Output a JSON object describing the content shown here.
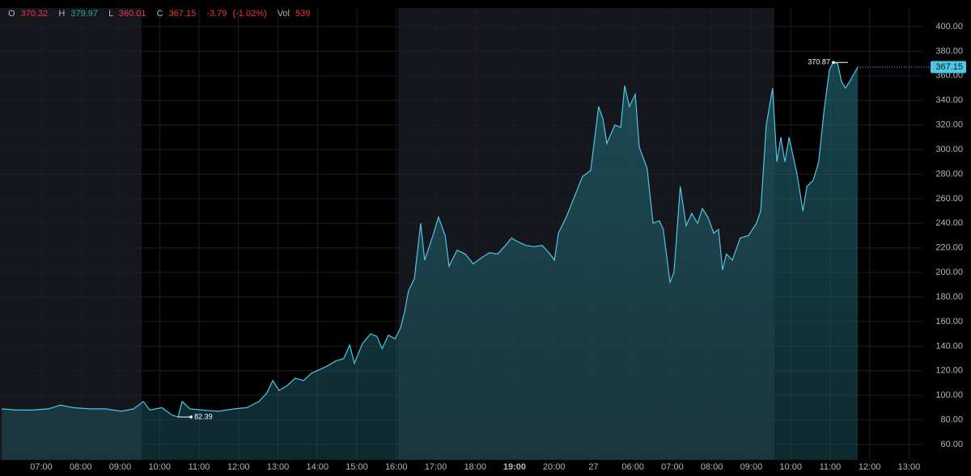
{
  "chart_data": {
    "type": "area",
    "header": {
      "open_label": "O",
      "open": 370.32,
      "high_label": "H",
      "high": 379.97,
      "low_label": "L",
      "low": 360.01,
      "close_label": "C",
      "close": 367.15,
      "change": -3.79,
      "change_pct": {
        "value": -1.02,
        "label": "(-1.02%)"
      },
      "vol_label": "Vol",
      "vol": 539
    },
    "color": "#4fc6e6",
    "x": [
      0.0,
      0.36,
      0.77,
      1.18,
      1.49,
      1.8,
      2.21,
      2.62,
      3.03,
      3.34,
      3.59,
      3.75,
      4.06,
      4.31,
      4.47,
      4.57,
      4.77,
      5.08,
      5.49,
      5.9,
      6.21,
      6.52,
      6.72,
      6.87,
      7.03,
      7.24,
      7.44,
      7.65,
      7.85,
      8.06,
      8.26,
      8.47,
      8.67,
      8.82,
      8.94,
      9.14,
      9.35,
      9.51,
      9.64,
      9.8,
      9.97,
      10.11,
      10.21,
      10.31,
      10.46,
      10.62,
      10.72,
      10.93,
      11.07,
      11.24,
      11.34,
      11.54,
      11.75,
      11.95,
      12.16,
      12.36,
      12.57,
      12.77,
      12.92,
      13.08,
      13.29,
      13.49,
      13.7,
      13.9,
      14.01,
      14.11,
      14.31,
      14.52,
      14.72,
      14.93,
      15.13,
      15.24,
      15.34,
      15.54,
      15.69,
      15.79,
      15.91,
      16.06,
      16.16,
      16.36,
      16.51,
      16.67,
      16.77,
      16.94,
      17.04,
      17.2,
      17.35,
      17.49,
      17.64,
      17.76,
      17.9,
      18.05,
      18.17,
      18.27,
      18.37,
      18.52,
      18.72,
      18.93,
      19.13,
      19.24,
      19.38,
      19.54,
      19.65,
      19.75,
      19.85,
      19.96,
      20.16,
      20.31,
      20.41,
      20.57,
      20.71,
      20.84,
      20.98,
      21.08,
      21.19,
      21.29,
      21.39,
      21.54,
      21.7
    ],
    "values": [
      89,
      88,
      88,
      89,
      92,
      90,
      89,
      89,
      87,
      89,
      95,
      88,
      90,
      84,
      82.39,
      95,
      89,
      88,
      87,
      89,
      90,
      95,
      102,
      112,
      104,
      108,
      114,
      112,
      118,
      121,
      124,
      128,
      130,
      141,
      126,
      142,
      150,
      148,
      138,
      149,
      146,
      155,
      168,
      185,
      195,
      240,
      210,
      230,
      245,
      230,
      205,
      218,
      215,
      207,
      212,
      216,
      215,
      222,
      228,
      225,
      222,
      221,
      222,
      215,
      210,
      232,
      245,
      262,
      278,
      283,
      335,
      325,
      305,
      320,
      318,
      352,
      335,
      345,
      302,
      285,
      240,
      242,
      235,
      192,
      200,
      270,
      238,
      248,
      240,
      252,
      245,
      232,
      235,
      202,
      215,
      210,
      228,
      230,
      240,
      250,
      320,
      350,
      290,
      310,
      290,
      310,
      280,
      250,
      270,
      275,
      290,
      330,
      365,
      370.87,
      370,
      355,
      350,
      358,
      367.15
    ],
    "xlim": [
      -0.046,
      23.34
    ],
    "xticks": [
      {
        "value": 1,
        "label": "07:00"
      },
      {
        "value": 2,
        "label": "08:00"
      },
      {
        "value": 3,
        "label": "09:00"
      },
      {
        "value": 4,
        "label": "10:00"
      },
      {
        "value": 5,
        "label": "11:00"
      },
      {
        "value": 6,
        "label": "12:00"
      },
      {
        "value": 7,
        "label": "13:00"
      },
      {
        "value": 8,
        "label": "14:00"
      },
      {
        "value": 9,
        "label": "15:00"
      },
      {
        "value": 10,
        "label": "16:00"
      },
      {
        "value": 11,
        "label": "17:00"
      },
      {
        "value": 12,
        "label": "18:00"
      },
      {
        "value": 13,
        "label": "19:00"
      },
      {
        "value": 14,
        "label": "20:00"
      },
      {
        "value": 15,
        "label": "27"
      },
      {
        "value": 16,
        "label": "06:00"
      },
      {
        "value": 17,
        "label": "07:00"
      },
      {
        "value": 18,
        "label": "08:00"
      },
      {
        "value": 19,
        "label": "09:00"
      },
      {
        "value": 20,
        "label": "10:00"
      },
      {
        "value": 21,
        "label": "11:00"
      },
      {
        "value": 22,
        "label": "12:00"
      },
      {
        "value": 23,
        "label": "13:00"
      }
    ],
    "ylim": [
      47.5,
      421.7
    ],
    "yticks": [
      {
        "value": 60,
        "label": "60.00"
      },
      {
        "value": 80,
        "label": "80.00"
      },
      {
        "value": 100,
        "label": "100.00"
      },
      {
        "value": 120,
        "label": "120.00"
      },
      {
        "value": 140,
        "label": "140.00"
      },
      {
        "value": 160,
        "label": "160.00"
      },
      {
        "value": 180,
        "label": "180.00"
      },
      {
        "value": 200,
        "label": "200.00"
      },
      {
        "value": 220,
        "label": "220.00"
      },
      {
        "value": 240,
        "label": "240.00"
      },
      {
        "value": 260,
        "label": "260.00"
      },
      {
        "value": 280,
        "label": "280.00"
      },
      {
        "value": 300,
        "label": "300.00"
      },
      {
        "value": 320,
        "label": "320.00"
      },
      {
        "value": 340,
        "label": "340.00"
      },
      {
        "value": 360,
        "label": "360.00"
      },
      {
        "value": 380,
        "label": "380.00"
      },
      {
        "value": 400,
        "label": "400.00"
      }
    ]
  }
}
